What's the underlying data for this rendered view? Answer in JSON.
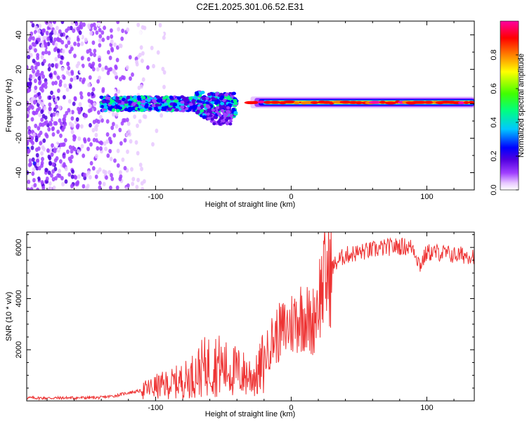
{
  "title": "C2E1.2025.301.06.52.E31",
  "chart_data": [
    {
      "type": "heatmap",
      "xlabel": "Height of straight line (km)",
      "ylabel": "Frequency (Hz)",
      "xlim": [
        -195,
        135
      ],
      "ylim": [
        -50,
        48
      ],
      "x_ticks": [
        -100,
        0,
        100
      ],
      "y_ticks": [
        -40,
        -20,
        0,
        20,
        40
      ],
      "colorbar": {
        "label": "Normalized spectral amplitude",
        "range": [
          0,
          1
        ],
        "ticks": [
          "0.0",
          "0.2",
          "0.4",
          "0.6",
          "0.8"
        ],
        "colors": [
          "#ffffff",
          "#e8c8ff",
          "#a040ff",
          "#5000e0",
          "#0000ff",
          "#00c8ff",
          "#00ff80",
          "#40ff00",
          "#ffff00",
          "#ff8000",
          "#ff0000",
          "#ff00a0"
        ]
      },
      "features": [
        {
          "description": "scattered low-amplitude noise",
          "x_range": [
            -195,
            -90
          ],
          "freq_range": [
            -50,
            48
          ]
        },
        {
          "description": "dense band",
          "x_range": [
            -140,
            -40
          ],
          "freq_range": [
            -10,
            8
          ]
        },
        {
          "description": "narrow peak band",
          "x_range": [
            -30,
            135
          ],
          "freq_center": 0.8
        }
      ]
    },
    {
      "type": "line",
      "xlabel": "Height of straight line (km)",
      "ylabel": "SNR (10 * v/v)",
      "xlim": [
        -195,
        135
      ],
      "ylim": [
        0,
        6600
      ],
      "x_ticks": [
        -100,
        0,
        100
      ],
      "y_ticks": [
        2000,
        4000,
        6000
      ],
      "series": [
        {
          "name": "SNR",
          "color": "#ee3333",
          "x": [
            -195,
            -180,
            -160,
            -140,
            -130,
            -120,
            -110,
            -100,
            -90,
            -80,
            -75,
            -70,
            -65,
            -60,
            -55,
            -50,
            -45,
            -40,
            -35,
            -30,
            -25,
            -20,
            -15,
            -10,
            -5,
            0,
            5,
            10,
            15,
            20,
            25,
            30,
            35,
            40,
            50,
            60,
            70,
            80,
            90,
            95,
            100,
            110,
            120,
            130,
            135
          ],
          "y": [
            120,
            110,
            120,
            130,
            200,
            320,
            400,
            550,
            650,
            800,
            900,
            1100,
            1300,
            1400,
            1450,
            1300,
            1200,
            1150,
            1050,
            1000,
            950,
            1600,
            2300,
            2600,
            2800,
            3000,
            3300,
            3400,
            2900,
            4000,
            4800,
            5200,
            5500,
            5700,
            5800,
            5900,
            6000,
            6050,
            6000,
            5300,
            5800,
            5800,
            5700,
            5700,
            5700
          ]
        }
      ]
    }
  ]
}
